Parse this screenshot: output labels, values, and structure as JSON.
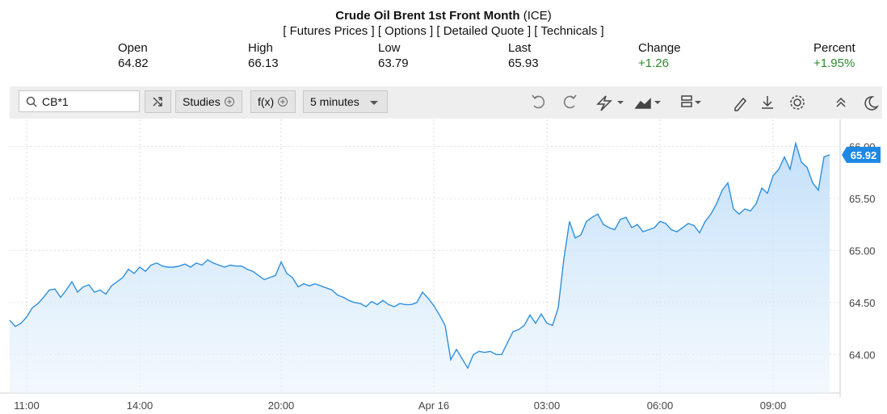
{
  "header": {
    "title": "Crude Oil Brent 1st Front Month",
    "exchange": "(ICE)",
    "links": [
      "[ Futures Prices ]",
      "[ Options ]",
      "[ Detailed Quote ]",
      "[ Technicals ]"
    ]
  },
  "quote": [
    {
      "label": "Open",
      "value": "64.82"
    },
    {
      "label": "High",
      "value": "66.13"
    },
    {
      "label": "Low",
      "value": "63.79"
    },
    {
      "label": "Last",
      "value": "65.93"
    },
    {
      "label": "Change",
      "value": "+1.26"
    },
    {
      "label": "Percent",
      "value": "+1.95%"
    }
  ],
  "toolbar": {
    "symbol": "CB*1",
    "studies": "Studies",
    "fx": "f(x)",
    "interval": "5 minutes"
  },
  "chart_data": {
    "type": "area",
    "color": "#2f8fdd",
    "grid": true,
    "ylim": [
      63.63,
      66.26
    ],
    "yticks": [
      {
        "value": 64,
        "label": "64.00"
      },
      {
        "value": 64.5,
        "label": "64.50"
      },
      {
        "value": 65,
        "label": "65.00"
      },
      {
        "value": 65.5,
        "label": "65.50"
      },
      {
        "value": 66,
        "label": "66.00"
      }
    ],
    "categories": [
      null,
      null,
      null,
      "11:00",
      null,
      null,
      null,
      null,
      null,
      null,
      null,
      null,
      null,
      null,
      null,
      null,
      null,
      null,
      null,
      null,
      null,
      null,
      null,
      "14:00",
      null,
      null,
      null,
      null,
      null,
      null,
      null,
      null,
      null,
      null,
      null,
      null,
      null,
      null,
      null,
      null,
      null,
      null,
      null,
      null,
      null,
      null,
      null,
      null,
      "20:00",
      null,
      null,
      null,
      null,
      null,
      null,
      null,
      null,
      null,
      null,
      null,
      null,
      null,
      null,
      null,
      null,
      null,
      null,
      null,
      null,
      null,
      null,
      null,
      null,
      null,
      null,
      "Apr 16",
      null,
      null,
      null,
      null,
      null,
      null,
      null,
      null,
      null,
      null,
      null,
      null,
      null,
      null,
      null,
      null,
      null,
      null,
      null,
      "03:00",
      null,
      null,
      null,
      null,
      null,
      null,
      null,
      null,
      null,
      null,
      null,
      null,
      null,
      null,
      null,
      null,
      null,
      null,
      null,
      "06:00",
      null,
      null,
      null,
      null,
      null,
      null,
      null,
      null,
      null,
      null,
      null,
      null,
      null,
      null,
      null,
      null,
      null,
      null,
      null,
      "09:00",
      null,
      null,
      null,
      null,
      null,
      null,
      null,
      null,
      null,
      null
    ],
    "values": [
      64.33,
      64.27,
      64.3,
      64.36,
      64.45,
      64.49,
      64.55,
      64.62,
      64.63,
      64.55,
      64.62,
      64.7,
      64.6,
      64.65,
      64.67,
      64.6,
      64.62,
      64.58,
      64.66,
      64.7,
      64.74,
      64.82,
      64.78,
      64.84,
      64.8,
      64.86,
      64.88,
      64.85,
      64.84,
      64.84,
      64.85,
      64.87,
      64.84,
      64.88,
      64.86,
      64.91,
      64.88,
      64.86,
      64.84,
      64.86,
      64.85,
      64.85,
      64.82,
      64.8,
      64.76,
      64.72,
      64.74,
      64.76,
      64.89,
      64.78,
      64.74,
      64.65,
      64.68,
      64.66,
      64.68,
      64.66,
      64.64,
      64.62,
      64.57,
      64.55,
      64.52,
      64.5,
      64.49,
      64.46,
      64.51,
      64.48,
      64.52,
      64.48,
      64.46,
      64.49,
      64.48,
      64.48,
      64.5,
      64.6,
      64.54,
      64.47,
      64.38,
      64.28,
      63.95,
      64.05,
      63.96,
      63.87,
      64.0,
      64.03,
      64.02,
      64.03,
      64.0,
      64.0,
      64.11,
      64.22,
      64.24,
      64.28,
      64.38,
      64.3,
      64.39,
      64.3,
      64.28,
      64.45,
      64.92,
      65.28,
      65.12,
      65.15,
      65.28,
      65.32,
      65.35,
      65.25,
      65.22,
      65.2,
      65.3,
      65.32,
      65.22,
      65.25,
      65.18,
      65.2,
      65.22,
      65.28,
      65.26,
      65.2,
      65.18,
      65.22,
      65.26,
      65.24,
      65.17,
      65.28,
      65.35,
      65.45,
      65.58,
      65.65,
      65.4,
      65.35,
      65.4,
      65.38,
      65.45,
      65.6,
      65.55,
      65.72,
      65.78,
      65.9,
      65.78,
      66.03,
      65.85,
      65.8,
      65.65,
      65.58,
      65.9,
      65.92
    ]
  }
}
